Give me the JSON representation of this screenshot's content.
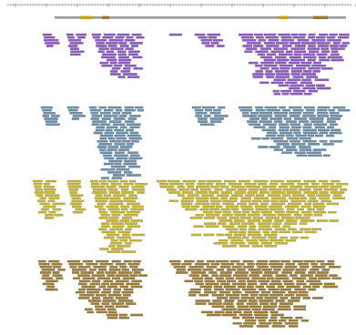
{
  "ruler": {
    "tick_labels": [
      "",
      "",
      "",
      "",
      "",
      "",
      "",
      "",
      "",
      "",
      "",
      ""
    ],
    "color": "#666666"
  },
  "reference": {
    "color": "#9a9a9a",
    "feature_colors": [
      "#c8a020",
      "#9c7c2c"
    ]
  },
  "tracks": [
    {
      "name": "",
      "color": "#8e5cc0",
      "edge_color": "#5b3a8a"
    },
    {
      "name": "",
      "color": "#6f90a8",
      "edge_color": "#3f5f77"
    },
    {
      "name": "",
      "color": "#c4b43a",
      "edge_color": "#8a7d1c"
    },
    {
      "name": "",
      "color": "#9c7e3c",
      "edge_color": "#6a5220"
    }
  ]
}
